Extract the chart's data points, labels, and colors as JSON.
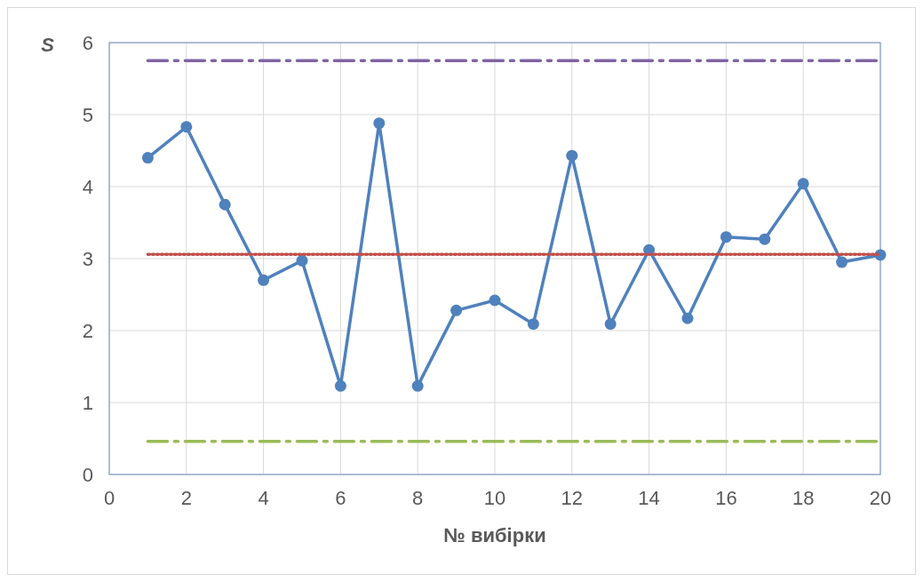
{
  "chart_data": {
    "type": "line",
    "xlabel": "№ вибірки",
    "ylabel": "S",
    "xlim": [
      0,
      20
    ],
    "ylim": [
      0,
      6
    ],
    "xticks": [
      0,
      2,
      4,
      6,
      8,
      10,
      12,
      14,
      16,
      18,
      20
    ],
    "yticks": [
      0,
      1,
      2,
      3,
      4,
      5,
      6
    ],
    "grid": true,
    "marker": "circle",
    "line_style": "solid",
    "series": [
      {
        "color": "#4f81bd",
        "x": [
          1,
          2,
          3,
          4,
          5,
          6,
          7,
          8,
          9,
          10,
          11,
          12,
          13,
          14,
          15,
          16,
          17,
          18,
          19,
          20
        ],
        "values": [
          4.4,
          4.83,
          3.75,
          2.7,
          2.97,
          1.23,
          4.88,
          1.23,
          2.28,
          2.42,
          2.09,
          4.43,
          2.09,
          3.12,
          2.17,
          3.3,
          3.27,
          4.04,
          2.95,
          3.05
        ]
      },
      {
        "color": "#8064a2",
        "x": [
          1,
          20
        ],
        "values": [
          5.75,
          5.75
        ],
        "marker": "none",
        "line_style": "dashed"
      },
      {
        "color": "#c0504d",
        "x": [
          1,
          20
        ],
        "values": [
          3.06,
          3.06
        ],
        "marker": "none",
        "line_style": "dotted"
      },
      {
        "color": "#9bbb59",
        "x": [
          1,
          20
        ],
        "values": [
          0.46,
          0.46
        ],
        "marker": "none",
        "line_style": "dashed"
      }
    ]
  }
}
